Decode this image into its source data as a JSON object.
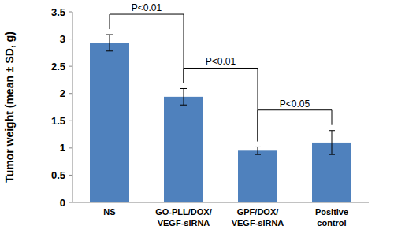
{
  "chart_data": {
    "type": "bar",
    "y_label": "Tumor weight (mean ± SD, g)",
    "categories": [
      "NS",
      "GO-PLL/DOX/\nVEGF-siRNA",
      "GPF/DOX/\nVEGF-siRNA",
      "Positive\ncontrol"
    ],
    "values": [
      2.93,
      1.94,
      0.95,
      1.1
    ],
    "errors": [
      0.15,
      0.15,
      0.07,
      0.22
    ],
    "color": "#4f81bd",
    "ylim": [
      0,
      3.5
    ],
    "yticks": [
      0,
      0.5,
      1,
      1.5,
      2,
      2.5,
      3,
      3.5
    ],
    "grid": false,
    "annotations": [
      {
        "text": "P<0.01",
        "between": [
          0,
          1
        ]
      },
      {
        "text": "P<0.01",
        "between": [
          1,
          2
        ]
      },
      {
        "text": "P<0.05",
        "between": [
          2,
          3
        ]
      }
    ]
  }
}
